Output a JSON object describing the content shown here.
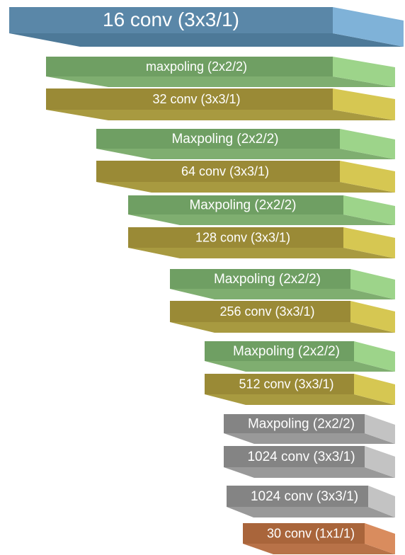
{
  "blocks": [
    {
      "label": "16 conv (3x3/1)"
    },
    {
      "label": "maxpoling (2x2/2)"
    },
    {
      "label": "32 conv (3x3/1)"
    },
    {
      "label": "Maxpoling (2x2/2)"
    },
    {
      "label": "64 conv (3x3/1)"
    },
    {
      "label": "Maxpoling (2x2/2)"
    },
    {
      "label": "128 conv (3x3/1)"
    },
    {
      "label": "Maxpoling (2x2/2)"
    },
    {
      "label": "256 conv (3x3/1)"
    },
    {
      "label": "Maxpoling (2x2/2)"
    },
    {
      "label": "512 conv (3x3/1)"
    },
    {
      "label": "Maxpoling (2x2/2)"
    },
    {
      "label": "1024 conv (3x3/1)"
    },
    {
      "label": "1024 conv (3x3/1)"
    },
    {
      "label": "30 conv (1x1/1)"
    }
  ]
}
